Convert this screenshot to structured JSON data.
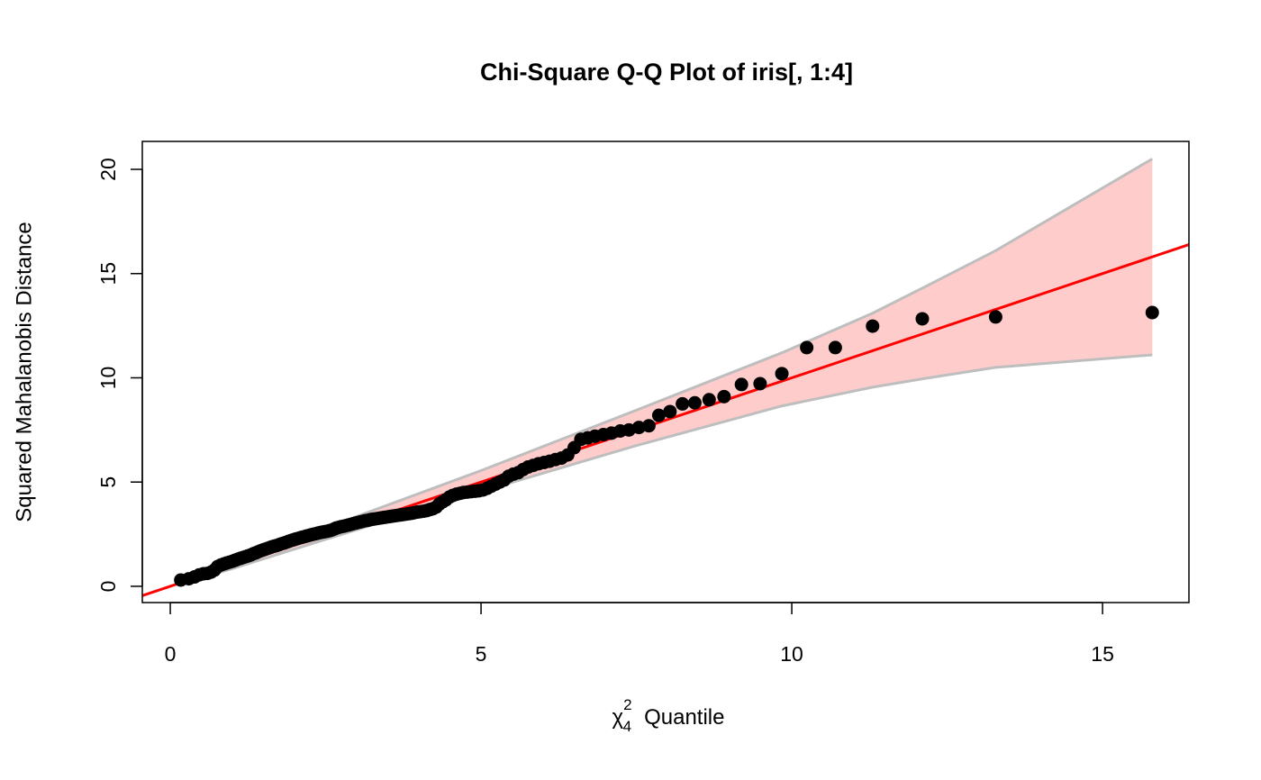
{
  "chart_data": {
    "type": "scatter",
    "title": "Chi-Square Q-Q Plot of iris[, 1:4]",
    "xlabel": {
      "symbol": "χ",
      "superscript": "2",
      "subscript": "4",
      "text": "Quantile"
    },
    "ylabel": "Squared Mahalanobis Distance",
    "xlim": [
      -0.45,
      16.39
    ],
    "ylim": [
      -0.78,
      21.34
    ],
    "xticks": [
      0,
      5,
      10,
      15
    ],
    "yticks": [
      0,
      5,
      10,
      15,
      20
    ],
    "color": "#000000",
    "x": [
      0.168,
      0.297,
      0.39,
      0.466,
      0.535,
      0.598,
      0.656,
      0.711,
      0.763,
      0.813,
      0.862,
      0.909,
      0.955,
      1.0,
      1.044,
      1.087,
      1.129,
      1.17,
      1.211,
      1.252,
      1.293,
      1.334,
      1.373,
      1.412,
      1.451,
      1.49,
      1.529,
      1.566,
      1.605,
      1.641,
      1.679,
      1.717,
      1.754,
      1.791,
      1.828,
      1.865,
      1.903,
      1.939,
      1.974,
      2.011,
      2.047,
      2.084,
      2.12,
      2.158,
      2.193,
      2.23,
      2.267,
      2.304,
      2.34,
      2.377,
      2.415,
      2.451,
      2.489,
      2.526,
      2.563,
      2.599,
      2.638,
      2.674,
      2.713,
      2.75,
      2.789,
      2.826,
      2.867,
      2.905,
      2.944,
      2.982,
      3.021,
      3.061,
      3.102,
      3.142,
      3.183,
      3.223,
      3.264,
      3.306,
      3.349,
      3.39,
      3.433,
      3.476,
      3.52,
      3.562,
      3.607,
      3.652,
      3.697,
      3.743,
      3.789,
      3.833,
      3.88,
      3.927,
      3.977,
      4.025,
      4.075,
      4.124,
      4.175,
      4.225,
      4.279,
      4.329,
      4.382,
      4.436,
      4.492,
      4.546,
      4.606,
      4.662,
      4.721,
      4.782,
      4.843,
      4.904,
      4.965,
      5.032,
      5.098,
      5.164,
      5.232,
      5.302,
      5.372,
      5.444,
      5.521,
      5.599,
      5.677,
      5.756,
      5.839,
      5.926,
      6.016,
      6.104,
      6.198,
      6.294,
      6.395,
      6.499,
      6.606,
      6.717,
      6.833,
      6.97,
      7.1,
      7.24,
      7.38,
      7.54,
      7.7,
      7.86,
      8.04,
      8.24,
      8.44,
      8.67,
      8.91,
      9.19,
      9.49,
      9.84,
      10.24,
      10.7,
      11.3,
      12.1,
      13.28,
      15.8
    ],
    "values": [
      0.3,
      0.36,
      0.45,
      0.55,
      0.6,
      0.62,
      0.68,
      0.78,
      0.95,
      1.02,
      1.07,
      1.12,
      1.16,
      1.2,
      1.25,
      1.3,
      1.34,
      1.38,
      1.42,
      1.46,
      1.5,
      1.56,
      1.6,
      1.65,
      1.7,
      1.74,
      1.78,
      1.82,
      1.86,
      1.9,
      1.93,
      1.96,
      2.0,
      2.04,
      2.07,
      2.11,
      2.15,
      2.19,
      2.22,
      2.26,
      2.29,
      2.32,
      2.35,
      2.38,
      2.41,
      2.44,
      2.47,
      2.5,
      2.52,
      2.55,
      2.58,
      2.6,
      2.62,
      2.64,
      2.67,
      2.7,
      2.75,
      2.8,
      2.83,
      2.86,
      2.88,
      2.91,
      2.94,
      2.97,
      3.0,
      3.03,
      3.06,
      3.09,
      3.12,
      3.15,
      3.17,
      3.2,
      3.22,
      3.24,
      3.26,
      3.28,
      3.3,
      3.32,
      3.34,
      3.36,
      3.38,
      3.4,
      3.42,
      3.44,
      3.46,
      3.48,
      3.5,
      3.53,
      3.56,
      3.58,
      3.6,
      3.63,
      3.68,
      3.72,
      3.8,
      3.95,
      4.05,
      4.15,
      4.28,
      4.36,
      4.42,
      4.46,
      4.5,
      4.52,
      4.54,
      4.56,
      4.58,
      4.62,
      4.7,
      4.8,
      4.9,
      5.0,
      5.1,
      5.28,
      5.38,
      5.45,
      5.6,
      5.72,
      5.8,
      5.88,
      5.94,
      6.0,
      6.08,
      6.15,
      6.3,
      6.65,
      7.05,
      7.12,
      7.2,
      7.28,
      7.35,
      7.45,
      7.5,
      7.62,
      7.7,
      8.2,
      8.38,
      8.75,
      8.8,
      8.95,
      9.1,
      9.68,
      9.72,
      10.2,
      11.45,
      11.45,
      12.48,
      12.83,
      12.92,
      13.13
    ],
    "reference_line": {
      "intercept": 0,
      "slope": 1,
      "color": "#ff0000"
    },
    "band": {
      "x": [
        0.17,
        1.0,
        2.5,
        5.0,
        7.5,
        9.84,
        11.3,
        12.1,
        13.28,
        15.8
      ],
      "upper": [
        0.25,
        1.15,
        2.8,
        5.55,
        8.45,
        11.2,
        13.1,
        14.3,
        16.1,
        20.5
      ],
      "lower": [
        0.1,
        0.85,
        2.25,
        4.55,
        6.75,
        8.65,
        9.55,
        9.95,
        10.5,
        11.1
      ],
      "fill": "#ffcccc",
      "line_color": "#bebebe"
    }
  }
}
